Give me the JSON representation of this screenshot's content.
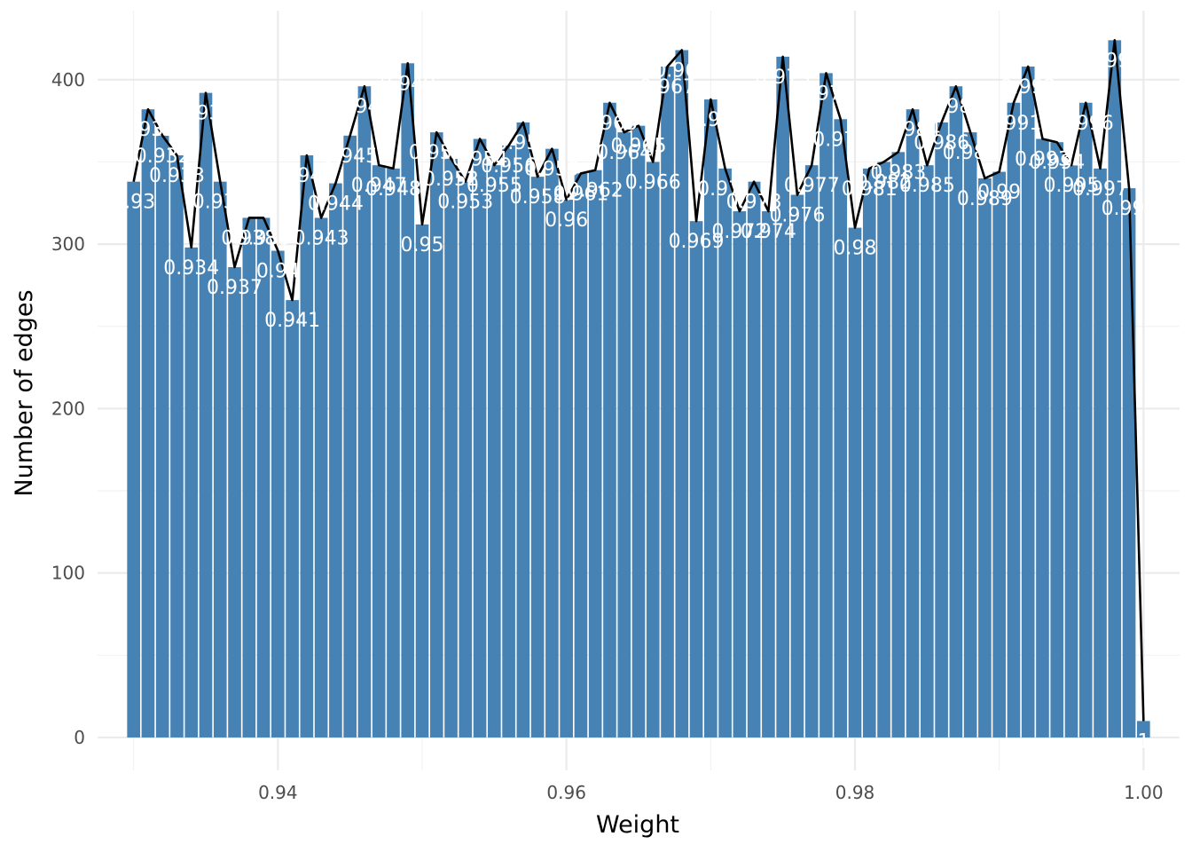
{
  "chart_data": {
    "type": "bar",
    "xlabel": "Weight",
    "ylabel": "Number of edges",
    "xlim": [
      0.9275,
      1.0025
    ],
    "ylim": [
      -20,
      442
    ],
    "x_ticks": [
      0.94,
      0.96,
      0.98,
      1.0
    ],
    "x_tick_labels": [
      "0.94",
      "0.96",
      "0.98",
      "1.00"
    ],
    "y_ticks": [
      0,
      100,
      200,
      300,
      400
    ],
    "y_tick_labels": [
      "0",
      "100",
      "200",
      "300",
      "400"
    ],
    "grid": true,
    "bar_color": "#4682b4",
    "line_color": "#000000",
    "overlay": "line through bar tops",
    "label_color": "#ffffff",
    "x": [
      0.93,
      0.931,
      0.932,
      0.933,
      0.934,
      0.935,
      0.936,
      0.937,
      0.938,
      0.939,
      0.94,
      0.941,
      0.942,
      0.943,
      0.944,
      0.945,
      0.946,
      0.947,
      0.948,
      0.949,
      0.95,
      0.951,
      0.952,
      0.953,
      0.954,
      0.955,
      0.956,
      0.957,
      0.958,
      0.959,
      0.96,
      0.961,
      0.962,
      0.963,
      0.964,
      0.965,
      0.966,
      0.967,
      0.968,
      0.969,
      0.97,
      0.971,
      0.972,
      0.973,
      0.974,
      0.975,
      0.976,
      0.977,
      0.978,
      0.979,
      0.98,
      0.981,
      0.982,
      0.983,
      0.984,
      0.985,
      0.986,
      0.987,
      0.988,
      0.989,
      0.99,
      0.991,
      0.992,
      0.993,
      0.994,
      0.995,
      0.996,
      0.997,
      0.998,
      0.999,
      1.0
    ],
    "values": [
      338,
      382,
      366,
      354,
      298,
      392,
      338,
      286,
      316,
      316,
      296,
      266,
      354,
      316,
      337,
      366,
      396,
      348,
      346,
      410,
      312,
      368,
      352,
      338,
      364,
      348,
      360,
      374,
      341,
      358,
      327,
      343,
      345,
      386,
      368,
      372,
      350,
      408,
      418,
      314,
      388,
      346,
      320,
      338,
      320,
      414,
      330,
      348,
      404,
      376,
      310,
      346,
      350,
      356,
      382,
      348,
      374,
      396,
      368,
      340,
      344,
      386,
      408,
      364,
      362,
      348,
      386,
      346,
      424,
      334,
      10
    ],
    "labels": [
      "0.93",
      "0.931",
      "0.932",
      "0.933",
      "0.934",
      "0.935",
      "0.936",
      "0.937",
      "0.938",
      "0.939",
      "0.94",
      "0.941",
      "0.942",
      "0.943",
      "0.944",
      "0.945",
      "0.946",
      "0.947",
      "0.948",
      "0.949",
      "0.95",
      "0.951",
      "0.952",
      "0.953",
      "0.954",
      "0.955",
      "0.956",
      "0.957",
      "0.958",
      "0.959",
      "0.96",
      "0.961",
      "0.962",
      "0.963",
      "0.964",
      "0.965",
      "0.966",
      "0.967",
      "0.968",
      "0.969",
      "0.97",
      "0.971",
      "0.972",
      "0.973",
      "0.974",
      "0.975",
      "0.976",
      "0.977",
      "0.978",
      "0.979",
      "0.98",
      "0.981",
      "0.982",
      "0.983",
      "0.984",
      "0.985",
      "0.986",
      "0.987",
      "0.988",
      "0.989",
      "0.99",
      "0.991",
      "0.992",
      "0.993",
      "0.994",
      "0.995",
      "0.996",
      "0.997",
      "0.998",
      "0.999",
      "1"
    ]
  }
}
